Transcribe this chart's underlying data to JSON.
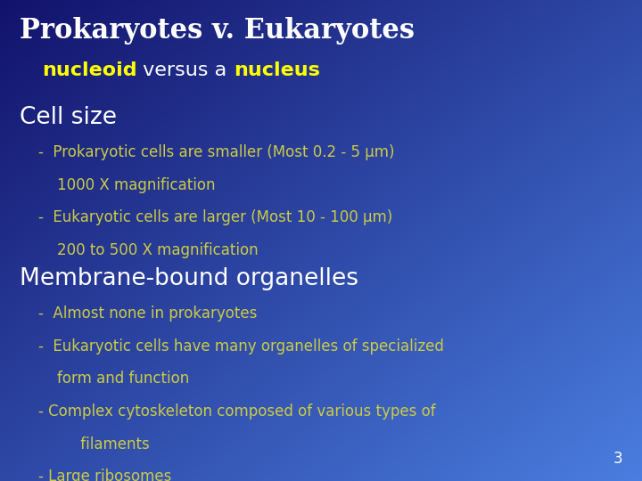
{
  "title": "Prokaryotes v. Eukaryotes",
  "subtitle_yellow": "nucleoid",
  "subtitle_white1": " versus a ",
  "subtitle_bold": "nucleus",
  "section1": "Cell size",
  "bullet1_1": "-  Prokaryotic cells are smaller (Most 0.2 - 5 μm)",
  "bullet1_2": "    1000 X magnification",
  "bullet1_3": "-  Eukaryotic cells are larger (Most 10 - 100 μm)",
  "bullet1_4": "    200 to 500 X magnification",
  "section2": "Membrane-bound organelles",
  "bullet2_1": "-  Almost none in prokaryotes",
  "bullet2_2": "-  Eukaryotic cells have many organelles of specialized",
  "bullet2_3": "    form and function",
  "bullet2_4": "- Complex cytoskeleton composed of various types of",
  "bullet2_5": "         filaments",
  "bullet2_6": "- Large ribosomes",
  "page_num": "3",
  "bg_color_topleft": "#12126b",
  "bg_color_bottomright": "#4a7ee0",
  "title_color": "#ffffff",
  "subtitle_yellow_color": "#ffff00",
  "subtitle_white_color": "#ffffff",
  "section_color": "#ffffff",
  "bullet_color": "#cccc44",
  "page_num_color": "#ffffff",
  "title_fontsize": 22,
  "subtitle_fontsize": 16,
  "section_fontsize": 19,
  "bullet_fontsize": 12,
  "page_num_fontsize": 12
}
